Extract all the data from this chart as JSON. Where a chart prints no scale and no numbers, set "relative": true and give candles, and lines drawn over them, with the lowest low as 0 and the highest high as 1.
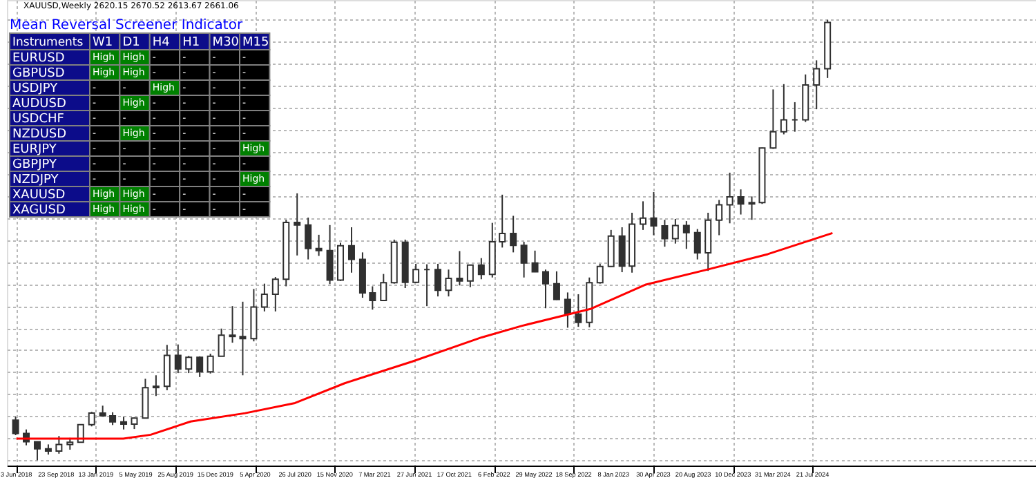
{
  "chart_data": [
    {
      "type": "candlestick",
      "relative": true,
      "color": "#303030",
      "grid": true,
      "annotations": [
        "XAUUSD,Weekly  2620.15 2670.52 2613.67 2661.06"
      ],
      "xlim": [
        "2018-05-27",
        "2026-03-22"
      ],
      "xticks": [
        {
          "value": "2018-06-03",
          "label": "3 Jun 2018"
        },
        {
          "value": "2018-09-23",
          "label": "23 Sep 2018"
        },
        {
          "value": "2019-01-13",
          "label": "13 Jan 2019"
        },
        {
          "value": "2019-05-05",
          "label": "5 May 2019"
        },
        {
          "value": "2019-08-25",
          "label": "25 Aug 2019"
        },
        {
          "value": "2019-12-15",
          "label": "15 Dec 2019"
        },
        {
          "value": "2020-04-05",
          "label": "5 Apr 2020"
        },
        {
          "value": "2020-07-26",
          "label": "26 Jul 2020"
        },
        {
          "value": "2020-11-15",
          "label": "15 Nov 2020"
        },
        {
          "value": "2021-03-07",
          "label": "7 Mar 2021"
        },
        {
          "value": "2021-06-27",
          "label": "27 Jun 2021"
        },
        {
          "value": "2021-10-17",
          "label": "17 Oct 2021"
        },
        {
          "value": "2022-02-06",
          "label": "6 Feb 2022"
        },
        {
          "value": "2022-05-29",
          "label": "29 May 2022"
        },
        {
          "value": "2022-09-18",
          "label": "18 Sep 2022"
        },
        {
          "value": "2023-01-08",
          "label": "8 Jan 2023"
        },
        {
          "value": "2023-04-30",
          "label": "30 Apr 2023"
        },
        {
          "value": "2023-08-20",
          "label": "20 Aug 2023"
        },
        {
          "value": "2023-12-10",
          "label": "10 Dec 2023"
        },
        {
          "value": "2024-03-31",
          "label": "31 Mar 2024"
        },
        {
          "value": "2024-07-21",
          "label": "21 Jul 2024"
        }
      ],
      "x": [
        "2018-06",
        "2018-07",
        "2018-08",
        "2018-09",
        "2018-10",
        "2018-11",
        "2018-12",
        "2019-01",
        "2019-02",
        "2019-03",
        "2019-04",
        "2019-05",
        "2019-06",
        "2019-07",
        "2019-08",
        "2019-09",
        "2019-10",
        "2019-11",
        "2019-12",
        "2020-01",
        "2020-02",
        "2020-03",
        "2020-04",
        "2020-05",
        "2020-06",
        "2020-07",
        "2020-08",
        "2020-09",
        "2020-10",
        "2020-11",
        "2020-12",
        "2021-01",
        "2021-02",
        "2021-03",
        "2021-04",
        "2021-05",
        "2021-06",
        "2021-07",
        "2021-08",
        "2021-09",
        "2021-10",
        "2021-11",
        "2021-12",
        "2022-01",
        "2022-02",
        "2022-03",
        "2022-04",
        "2022-05",
        "2022-06",
        "2022-07",
        "2022-08",
        "2022-09",
        "2022-10",
        "2022-11",
        "2022-12",
        "2023-01",
        "2023-02",
        "2023-03",
        "2023-04",
        "2023-05",
        "2023-06",
        "2023-07",
        "2023-08",
        "2023-09",
        "2023-10",
        "2023-11",
        "2023-12",
        "2024-01",
        "2024-02",
        "2024-03",
        "2024-04",
        "2024-05",
        "2024-06",
        "2024-07",
        "2024-08",
        "2024-09"
      ],
      "ohlc": [
        [
          0.091,
          0.099,
          0.057,
          0.061
        ],
        [
          0.061,
          0.07,
          0.034,
          0.042
        ],
        [
          0.042,
          0.043,
          0.0,
          0.026
        ],
        [
          0.026,
          0.036,
          0.013,
          0.021
        ],
        [
          0.021,
          0.055,
          0.015,
          0.036
        ],
        [
          0.036,
          0.051,
          0.024,
          0.041
        ],
        [
          0.041,
          0.082,
          0.04,
          0.081
        ],
        [
          0.081,
          0.11,
          0.077,
          0.107
        ],
        [
          0.107,
          0.124,
          0.1,
          0.101
        ],
        [
          0.101,
          0.109,
          0.08,
          0.087
        ],
        [
          0.087,
          0.099,
          0.07,
          0.082
        ],
        [
          0.082,
          0.097,
          0.071,
          0.096
        ],
        [
          0.096,
          0.185,
          0.096,
          0.165
        ],
        [
          0.165,
          0.193,
          0.146,
          0.168
        ],
        [
          0.168,
          0.262,
          0.159,
          0.238
        ],
        [
          0.238,
          0.263,
          0.198,
          0.207
        ],
        [
          0.207,
          0.237,
          0.198,
          0.234
        ],
        [
          0.234,
          0.236,
          0.189,
          0.201
        ],
        [
          0.201,
          0.242,
          0.197,
          0.236
        ],
        [
          0.236,
          0.299,
          0.236,
          0.284
        ],
        [
          0.284,
          0.35,
          0.267,
          0.281
        ],
        [
          0.281,
          0.36,
          0.193,
          0.276
        ],
        [
          0.276,
          0.389,
          0.27,
          0.348
        ],
        [
          0.348,
          0.401,
          0.338,
          0.377
        ],
        [
          0.377,
          0.416,
          0.338,
          0.411
        ],
        [
          0.411,
          0.546,
          0.395,
          0.54
        ],
        [
          0.54,
          0.606,
          0.465,
          0.534
        ],
        [
          0.534,
          0.551,
          0.456,
          0.481
        ],
        [
          0.481,
          0.512,
          0.464,
          0.476
        ],
        [
          0.476,
          0.534,
          0.4,
          0.409
        ],
        [
          0.409,
          0.494,
          0.407,
          0.487
        ],
        [
          0.487,
          0.529,
          0.426,
          0.456
        ],
        [
          0.456,
          0.472,
          0.369,
          0.38
        ],
        [
          0.38,
          0.395,
          0.342,
          0.363
        ],
        [
          0.363,
          0.423,
          0.362,
          0.403
        ],
        [
          0.403,
          0.501,
          0.401,
          0.495
        ],
        [
          0.495,
          0.501,
          0.391,
          0.404
        ],
        [
          0.404,
          0.446,
          0.402,
          0.433
        ],
        [
          0.433,
          0.445,
          0.35,
          0.433
        ],
        [
          0.433,
          0.446,
          0.372,
          0.386
        ],
        [
          0.386,
          0.433,
          0.372,
          0.413
        ],
        [
          0.413,
          0.475,
          0.397,
          0.407
        ],
        [
          0.407,
          0.444,
          0.393,
          0.443
        ],
        [
          0.443,
          0.459,
          0.411,
          0.422
        ],
        [
          0.422,
          0.539,
          0.415,
          0.496
        ],
        [
          0.496,
          0.603,
          0.483,
          0.515
        ],
        [
          0.515,
          0.555,
          0.472,
          0.488
        ],
        [
          0.488,
          0.496,
          0.415,
          0.448
        ],
        [
          0.448,
          0.476,
          0.427,
          0.428
        ],
        [
          0.428,
          0.433,
          0.345,
          0.401
        ],
        [
          0.401,
          0.429,
          0.364,
          0.365
        ],
        [
          0.365,
          0.381,
          0.301,
          0.332
        ],
        [
          0.332,
          0.377,
          0.303,
          0.313
        ],
        [
          0.313,
          0.415,
          0.302,
          0.403
        ],
        [
          0.403,
          0.446,
          0.401,
          0.44
        ],
        [
          0.44,
          0.523,
          0.439,
          0.509
        ],
        [
          0.509,
          0.529,
          0.427,
          0.441
        ],
        [
          0.441,
          0.562,
          0.426,
          0.536
        ],
        [
          0.536,
          0.588,
          0.523,
          0.55
        ],
        [
          0.55,
          0.609,
          0.511,
          0.532
        ],
        [
          0.532,
          0.546,
          0.485,
          0.503
        ],
        [
          0.503,
          0.548,
          0.492,
          0.533
        ],
        [
          0.533,
          0.543,
          0.48,
          0.517
        ],
        [
          0.517,
          0.525,
          0.456,
          0.471
        ],
        [
          0.471,
          0.562,
          0.43,
          0.545
        ],
        [
          0.545,
          0.591,
          0.511,
          0.58
        ],
        [
          0.58,
          0.653,
          0.538,
          0.598
        ],
        [
          0.598,
          0.615,
          0.558,
          0.582
        ],
        [
          0.582,
          0.599,
          0.546,
          0.585
        ],
        [
          0.585,
          0.71,
          0.582,
          0.709
        ],
        [
          0.709,
          0.842,
          0.707,
          0.746
        ],
        [
          0.746,
          0.854,
          0.74,
          0.773
        ],
        [
          0.773,
          0.813,
          0.746,
          0.773
        ],
        [
          0.773,
          0.876,
          0.768,
          0.852
        ],
        [
          0.852,
          0.908,
          0.797,
          0.889
        ],
        [
          0.889,
          1.0,
          0.868,
          0.994
        ]
      ],
      "series": [
        {
          "type": "line",
          "color": "#ff0000",
          "x": [
            "2018-06-03",
            "2019-03-31",
            "2019-06-16",
            "2019-10-06",
            "2020-03-08",
            "2020-07-26",
            "2020-12-13",
            "2021-06-20",
            "2022-01-02",
            "2022-04-24",
            "2022-11-06",
            "2023-04-09",
            "2023-09-24",
            "2024-03-17",
            "2024-09-15"
          ],
          "values": [
            0.049,
            0.049,
            0.058,
            0.088,
            0.107,
            0.13,
            0.175,
            0.224,
            0.279,
            0.305,
            0.344,
            0.399,
            0.432,
            0.468,
            0.516
          ]
        }
      ]
    },
    {
      "type": "other",
      "title": "Mean Reversal Screener Indicator",
      "ylabel": "Instruments",
      "categories": [
        "W1",
        "D1",
        "H4",
        "H1",
        "M30",
        "M15"
      ],
      "y_categories": [
        "EURUSD",
        "GBPUSD",
        "USDJPY",
        "AUDUSD",
        "USDCHF",
        "NZDUSD",
        "EURJPY",
        "GBPJPY",
        "NZDJPY",
        "XAUUSD",
        "XAGUSD"
      ],
      "colors": [
        [
          "#008000",
          "#008000",
          "#000000",
          "#000000",
          "#000000",
          "#000000"
        ],
        [
          "#008000",
          "#008000",
          "#000000",
          "#000000",
          "#000000",
          "#000000"
        ],
        [
          "#000000",
          "#000000",
          "#008000",
          "#000000",
          "#000000",
          "#000000"
        ],
        [
          "#000000",
          "#008000",
          "#000000",
          "#000000",
          "#000000",
          "#000000"
        ],
        [
          "#000000",
          "#000000",
          "#000000",
          "#000000",
          "#000000",
          "#000000"
        ],
        [
          "#000000",
          "#008000",
          "#000000",
          "#000000",
          "#000000",
          "#000000"
        ],
        [
          "#000000",
          "#000000",
          "#000000",
          "#000000",
          "#000000",
          "#008000"
        ],
        [
          "#000000",
          "#000000",
          "#000000",
          "#000000",
          "#000000",
          "#000000"
        ],
        [
          "#000000",
          "#000000",
          "#000000",
          "#000000",
          "#000000",
          "#008000"
        ],
        [
          "#008000",
          "#008000",
          "#000000",
          "#000000",
          "#000000",
          "#000000"
        ],
        [
          "#008000",
          "#008000",
          "#000000",
          "#000000",
          "#000000",
          "#000000"
        ]
      ],
      "cell_labels": [
        [
          "High",
          "High",
          "-",
          "-",
          "-",
          "-"
        ],
        [
          "High",
          "High",
          "-",
          "-",
          "-",
          "-"
        ],
        [
          "-",
          "-",
          "High",
          "-",
          "-",
          "-"
        ],
        [
          "-",
          "High",
          "-",
          "-",
          "-",
          "-"
        ],
        [
          "-",
          "-",
          "-",
          "-",
          "-",
          "-"
        ],
        [
          "-",
          "High",
          "-",
          "-",
          "-",
          "-"
        ],
        [
          "-",
          "-",
          "-",
          "-",
          "-",
          "High"
        ],
        [
          "-",
          "-",
          "-",
          "-",
          "-",
          "-"
        ],
        [
          "-",
          "-",
          "-",
          "-",
          "-",
          "High"
        ],
        [
          "High",
          "High",
          "-",
          "-",
          "-",
          "-"
        ],
        [
          "High",
          "High",
          "-",
          "-",
          "-",
          "-"
        ]
      ]
    }
  ]
}
